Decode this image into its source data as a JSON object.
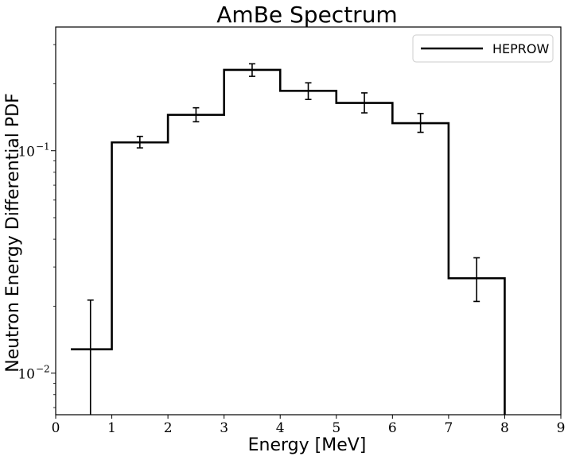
{
  "chart_data": {
    "type": "histogram-step",
    "title": "AmBe Spectrum",
    "xlabel": "Energy [MeV]",
    "ylabel": "Neutron Energy Differential PDF",
    "xlim": [
      0,
      9
    ],
    "ylim": [
      0.0065,
      0.36
    ],
    "yscale": "log",
    "xticks": [
      "0",
      "1",
      "2",
      "3",
      "4",
      "5",
      "6",
      "7",
      "8",
      "9"
    ],
    "yticks": [
      {
        "value": 0.01,
        "base": "10",
        "exp": "−2"
      },
      {
        "value": 0.1,
        "base": "10",
        "exp": "−1"
      }
    ],
    "legend_position": "top-right",
    "grid": false,
    "series": [
      {
        "name": "HEPROW",
        "color": "#000000",
        "bins": [
          {
            "x0": 0.27,
            "x1": 1.0,
            "value": 0.0128,
            "err_x": 0.62,
            "err_lo": 0.0055,
            "err_hi": 0.0213
          },
          {
            "x0": 1.0,
            "x1": 2.0,
            "value": 0.109,
            "err_x": 1.5,
            "err_lo": 0.103,
            "err_hi": 0.116
          },
          {
            "x0": 2.0,
            "x1": 3.0,
            "value": 0.145,
            "err_x": 2.5,
            "err_lo": 0.135,
            "err_hi": 0.156
          },
          {
            "x0": 3.0,
            "x1": 4.0,
            "value": 0.231,
            "err_x": 3.5,
            "err_lo": 0.216,
            "err_hi": 0.246
          },
          {
            "x0": 4.0,
            "x1": 5.0,
            "value": 0.186,
            "err_x": 4.5,
            "err_lo": 0.17,
            "err_hi": 0.202
          },
          {
            "x0": 5.0,
            "x1": 6.0,
            "value": 0.164,
            "err_x": 5.5,
            "err_lo": 0.148,
            "err_hi": 0.182
          },
          {
            "x0": 6.0,
            "x1": 7.0,
            "value": 0.133,
            "err_x": 6.5,
            "err_lo": 0.121,
            "err_hi": 0.147
          },
          {
            "x0": 7.0,
            "x1": 8.0,
            "value": 0.0267,
            "err_x": 7.5,
            "err_lo": 0.021,
            "err_hi": 0.033
          }
        ],
        "drop_to_x": 8.0
      }
    ]
  }
}
